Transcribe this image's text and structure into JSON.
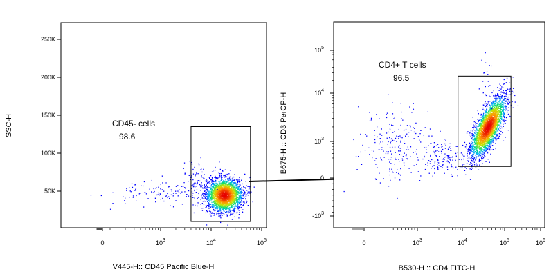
{
  "chart_data": [
    {
      "type": "scatter",
      "subtype": "flow-cytometry-density-dot-plot",
      "xlabel": "V445-H:: CD45 Pacific Blue-H",
      "ylabel": "SSC-H",
      "x_scale": "biexponential",
      "x_ticks": [
        {
          "value": 0,
          "base": "0",
          "exp": ""
        },
        {
          "value": 1000,
          "base": "10",
          "exp": "3"
        },
        {
          "value": 10000,
          "base": "10",
          "exp": "4"
        },
        {
          "value": 100000,
          "base": "10",
          "exp": "5"
        }
      ],
      "y_scale": "linear",
      "y_ticks": [
        {
          "value": 50000,
          "label": "50K"
        },
        {
          "value": 100000,
          "label": "100K"
        },
        {
          "value": 150000,
          "label": "150K"
        },
        {
          "value": 200000,
          "label": "200K"
        },
        {
          "value": 250000,
          "label": "250K"
        }
      ],
      "ylim": [
        0,
        262144
      ],
      "gate": {
        "name": "CD45- cells",
        "percent": "98.6",
        "x_range": [
          4000,
          60000
        ],
        "y_range": [
          10000,
          135000
        ]
      },
      "population": {
        "center_x": 18000,
        "center_y": 45000,
        "events_in_gate": "dense",
        "scattered_events_outside": "low density toward x=0..3000"
      }
    },
    {
      "type": "scatter",
      "subtype": "flow-cytometry-density-dot-plot",
      "xlabel": "B530-H :: CD4 FITC-H",
      "ylabel": "B675-H :: CD3 PerCP-H",
      "x_scale": "biexponential",
      "x_ticks": [
        {
          "value": 0,
          "base": "0",
          "exp": ""
        },
        {
          "value": 1000,
          "base": "10",
          "exp": "3"
        },
        {
          "value": 10000,
          "base": "10",
          "exp": "4"
        },
        {
          "value": 100000,
          "base": "10",
          "exp": "5"
        },
        {
          "value": 1000000,
          "base": "10",
          "exp": "6"
        }
      ],
      "y_scale": "biexponential",
      "y_ticks": [
        {
          "value": -1000,
          "base": "-10",
          "exp": "3"
        },
        {
          "value": 0,
          "base": "0",
          "exp": ""
        },
        {
          "value": 1000,
          "base": "10",
          "exp": "3"
        },
        {
          "value": 10000,
          "base": "10",
          "exp": "4"
        },
        {
          "value": 100000,
          "base": "10",
          "exp": "5"
        }
      ],
      "gate": {
        "name": "CD4+ T cells",
        "percent": "96.5",
        "x_range": [
          8000,
          150000
        ],
        "y_range": [
          100,
          25000
        ]
      },
      "population": {
        "center_x": 40000,
        "center_y": 2000,
        "scattered_events_outside": "cloud near x=200..3000, y=0..3000"
      }
    }
  ],
  "arrow": {
    "from": "CD45- cells gate",
    "to": "second plot"
  }
}
